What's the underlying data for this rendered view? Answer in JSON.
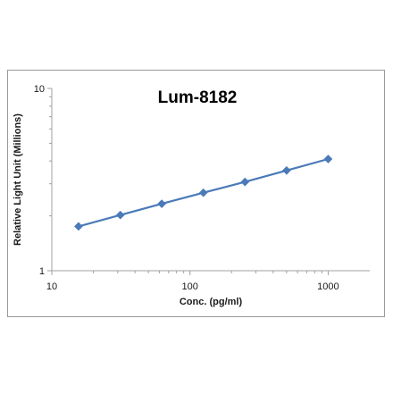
{
  "chart_data": {
    "type": "line",
    "title": "Lum-8182",
    "xlabel": "Conc. (pg/ml)",
    "ylabel": "Relative Light Unit (Millions)",
    "x_scale": "log",
    "y_scale": "log",
    "xlim": [
      10,
      2000
    ],
    "ylim": [
      1,
      10
    ],
    "x_ticks": [
      10,
      100,
      1000
    ],
    "x_tick_labels": [
      "10",
      "100",
      "1000"
    ],
    "y_ticks": [
      1,
      10
    ],
    "y_tick_labels": [
      "1",
      "10"
    ],
    "grid": false,
    "legend": "none",
    "series": [
      {
        "color": "#4a7ab8",
        "marker": "diamond",
        "x": [
          15.6,
          31.3,
          62.5,
          125,
          250,
          500,
          1000
        ],
        "y": [
          1.75,
          2.02,
          2.33,
          2.68,
          3.07,
          3.55,
          4.1
        ]
      }
    ]
  }
}
